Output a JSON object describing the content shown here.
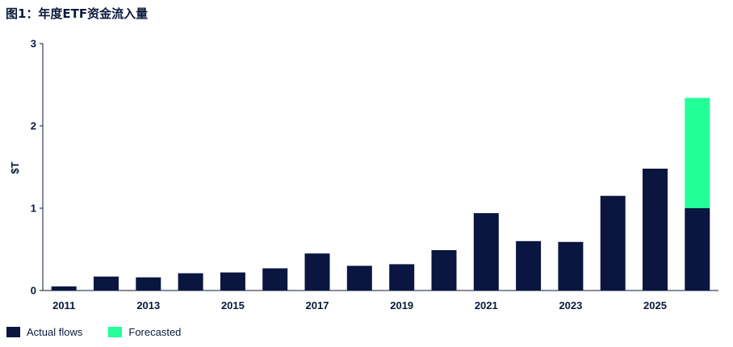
{
  "chart_data": {
    "type": "bar",
    "title": "图1：年度ETF资金流入量",
    "ylabel": "$T",
    "xlabel": "",
    "ylim": [
      0,
      3
    ],
    "yticks": [
      "0",
      "1",
      "2",
      "3"
    ],
    "categories": [
      "2011",
      "2012",
      "2013",
      "2014",
      "2015",
      "2016",
      "2017",
      "2018",
      "2019",
      "2020",
      "2021",
      "2022",
      "2023",
      "2024",
      "2025",
      "2026"
    ],
    "xtick_labels": [
      "2011",
      "2013",
      "2015",
      "2017",
      "2019",
      "2021",
      "2023",
      "2025"
    ],
    "series": [
      {
        "name": "Actual flows",
        "color": "#0a1640",
        "values": [
          0.05,
          0.17,
          0.16,
          0.21,
          0.22,
          0.27,
          0.45,
          0.3,
          0.32,
          0.49,
          0.94,
          0.6,
          0.59,
          1.15,
          1.48,
          1.0
        ]
      },
      {
        "name": "Forecasted",
        "color": "#22ff99",
        "values": [
          0,
          0,
          0,
          0,
          0,
          0,
          0,
          0,
          0,
          0,
          0,
          0,
          0,
          0,
          0,
          1.34
        ]
      }
    ],
    "stacked": true,
    "grid": false,
    "legend_position": "bottom-left"
  }
}
